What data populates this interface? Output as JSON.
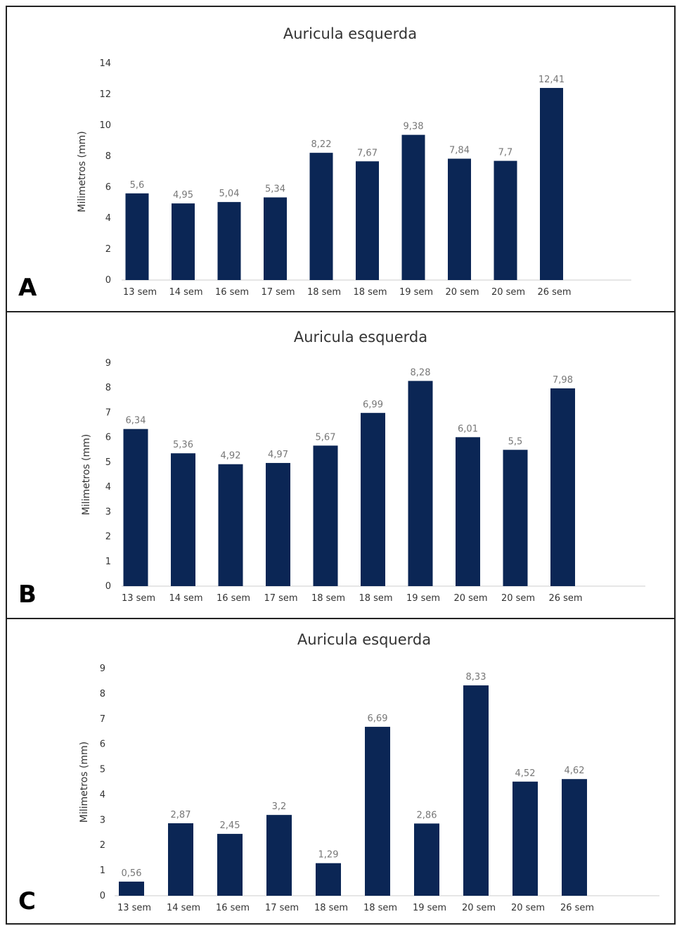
{
  "figure": {
    "bar_color": "#0b2655"
  },
  "chart_data": [
    {
      "type": "bar",
      "panel": "A",
      "title": "Auricula esquerda",
      "ylabel": "Milimetros (mm)",
      "xlabel": "",
      "ylim": [
        0,
        14
      ],
      "yticks": [
        "0",
        "2",
        "4",
        "6",
        "8",
        "10",
        "12",
        "14"
      ],
      "categories": [
        "13 sem",
        "14 sem",
        "16 sem",
        "17 sem",
        "18 sem",
        "18 sem",
        "19 sem",
        "20 sem",
        "20 sem",
        "26 sem"
      ],
      "values": [
        5.6,
        4.95,
        5.04,
        5.34,
        8.22,
        7.67,
        9.38,
        7.84,
        7.7,
        12.41
      ],
      "value_labels": [
        "5,6",
        "4,95",
        "5,04",
        "5,34",
        "8,22",
        "7,67",
        "9,38",
        "7,84",
        "7,7",
        "12,41"
      ],
      "grid": false,
      "legend": "none"
    },
    {
      "type": "bar",
      "panel": "B",
      "title": "Auricula esquerda",
      "ylabel": "Milimetros (mm)",
      "xlabel": "",
      "ylim": [
        0,
        9
      ],
      "yticks": [
        "0",
        "1",
        "2",
        "3",
        "4",
        "5",
        "6",
        "7",
        "8",
        "9"
      ],
      "categories": [
        "13 sem",
        "14 sem",
        "16 sem",
        "17 sem",
        "18 sem",
        "18 sem",
        "19 sem",
        "20 sem",
        "20 sem",
        "26 sem"
      ],
      "values": [
        6.34,
        5.36,
        4.92,
        4.97,
        5.67,
        6.99,
        8.28,
        6.01,
        5.5,
        7.98
      ],
      "value_labels": [
        "6,34",
        "5,36",
        "4,92",
        "4,97",
        "5,67",
        "6,99",
        "8,28",
        "6,01",
        "5,5",
        "7,98"
      ],
      "grid": false,
      "legend": "none"
    },
    {
      "type": "bar",
      "panel": "C",
      "title": "Auricula esquerda",
      "ylabel": "Milimetros (mm)",
      "xlabel": "",
      "ylim": [
        0,
        9
      ],
      "yticks": [
        "0",
        "1",
        "2",
        "3",
        "4",
        "5",
        "6",
        "7",
        "8",
        "9"
      ],
      "categories": [
        "13 sem",
        "14 sem",
        "16 sem",
        "17 sem",
        "18 sem",
        "18 sem",
        "19 sem",
        "20 sem",
        "20 sem",
        "26 sem"
      ],
      "values": [
        0.56,
        2.87,
        2.45,
        3.2,
        1.29,
        6.69,
        2.86,
        8.33,
        4.52,
        4.62
      ],
      "value_labels": [
        "0,56",
        "2,87",
        "2,45",
        "3,2",
        "1,29",
        "6,69",
        "2,86",
        "8,33",
        "4,52",
        "4,62"
      ],
      "grid": false,
      "legend": "none"
    }
  ]
}
